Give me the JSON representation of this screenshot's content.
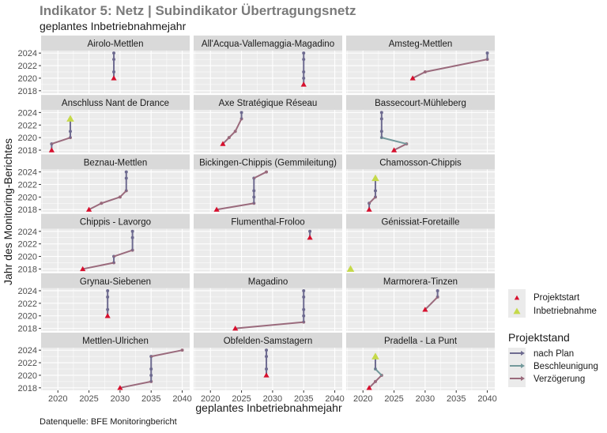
{
  "chart_data": {
    "type": "line",
    "title": "Indikator 5: Netz | Subindikator Übertragungsnetz",
    "subtitle": "geplantes Inbetriebnahmejahr",
    "xlabel": "geplantes Inbetriebnahmejahr",
    "ylabel": "Jahr des Monitoring-Berichtes",
    "caption": "Datenquelle: BFE Monitoringbericht",
    "xlim": [
      2017.3,
      2041.2
    ],
    "ylim": [
      2017.6,
      2024.4
    ],
    "xticks": [
      2020,
      2025,
      2030,
      2035,
      2040
    ],
    "yticks": [
      2018,
      2020,
      2022,
      2024
    ],
    "grid": true,
    "legend_placement": "right",
    "legend": {
      "points": [
        {
          "key": "start",
          "label": "Projektstart",
          "color": "#d7102e"
        },
        {
          "key": "commissioning",
          "label": "Inbetriebnahme",
          "color": "#c5d94a"
        }
      ],
      "status_title": "Projektstand",
      "status": [
        {
          "key": "plan",
          "label": "nach Plan",
          "color": "#6e6b90"
        },
        {
          "key": "beschleunigung",
          "label": "Beschleunigung",
          "color": "#73999b"
        },
        {
          "key": "verzoegerung",
          "label": "Verzögerung",
          "color": "#9a6a7c"
        }
      ]
    },
    "panels": [
      {
        "title": "Airolo-Mettlen",
        "start": [
          2029,
          2020
        ],
        "commissioning": null,
        "path": [
          [
            2029,
            2020,
            null
          ],
          [
            2029,
            2021,
            "plan"
          ],
          [
            2029,
            2023,
            "plan"
          ],
          [
            2029,
            2024,
            "plan"
          ]
        ]
      },
      {
        "title": "All'Acqua-Vallemaggia-Magadino",
        "start": [
          2035,
          2019
        ],
        "commissioning": null,
        "path": [
          [
            2035,
            2019,
            null
          ],
          [
            2035,
            2020,
            "plan"
          ],
          [
            2035,
            2021,
            "plan"
          ],
          [
            2035,
            2023,
            "plan"
          ],
          [
            2035,
            2024,
            "plan"
          ]
        ]
      },
      {
        "title": "Amsteg-Mettlen",
        "start": [
          2028,
          2020
        ],
        "commissioning": null,
        "path": [
          [
            2028,
            2020,
            null
          ],
          [
            2030,
            2021,
            "verzoegerung"
          ],
          [
            2040,
            2023,
            "verzoegerung"
          ],
          [
            2040,
            2024,
            "plan"
          ]
        ]
      },
      {
        "title": "Anschluss Nant de Drance",
        "start": [
          2019,
          2018
        ],
        "commissioning": [
          2022,
          2023
        ],
        "path": [
          [
            2019,
            2018,
            null
          ],
          [
            2019,
            2019,
            "plan"
          ],
          [
            2022,
            2020,
            "verzoegerung"
          ],
          [
            2022,
            2021,
            "plan"
          ],
          [
            2022,
            2023,
            "plan"
          ]
        ]
      },
      {
        "title": "Axe Stratégique Réseau",
        "start": [
          2022,
          2019
        ],
        "commissioning": null,
        "path": [
          [
            2022,
            2019,
            null
          ],
          [
            2023,
            2020,
            "verzoegerung"
          ],
          [
            2024,
            2021,
            "verzoegerung"
          ],
          [
            2025,
            2023,
            "verzoegerung"
          ],
          [
            2025,
            2024,
            "plan"
          ]
        ]
      },
      {
        "title": "Bassecourt-Mühleberg",
        "start": [
          2025,
          2018
        ],
        "commissioning": null,
        "path": [
          [
            2025,
            2018,
            null
          ],
          [
            2027,
            2019,
            "verzoegerung"
          ],
          [
            2023,
            2020,
            "beschleunigung"
          ],
          [
            2023,
            2021,
            "plan"
          ],
          [
            2023,
            2023,
            "plan"
          ],
          [
            2023,
            2024,
            "plan"
          ]
        ]
      },
      {
        "title": "Beznau-Mettlen",
        "start": [
          2025,
          2018
        ],
        "commissioning": null,
        "path": [
          [
            2025,
            2018,
            null
          ],
          [
            2027,
            2019,
            "verzoegerung"
          ],
          [
            2030,
            2020,
            "verzoegerung"
          ],
          [
            2031,
            2021,
            "verzoegerung"
          ],
          [
            2031,
            2023,
            "plan"
          ],
          [
            2031,
            2024,
            "plan"
          ]
        ]
      },
      {
        "title": "Bickingen-Chippis (Gemmileitung)",
        "start": [
          2021,
          2018
        ],
        "commissioning": null,
        "path": [
          [
            2021,
            2018,
            null
          ],
          [
            2027,
            2019,
            "verzoegerung"
          ],
          [
            2027,
            2020,
            "plan"
          ],
          [
            2027,
            2021,
            "plan"
          ],
          [
            2027,
            2023,
            "plan"
          ],
          [
            2029,
            2024,
            "verzoegerung"
          ]
        ]
      },
      {
        "title": "Chamosson-Chippis",
        "start": [
          2021,
          2018
        ],
        "commissioning": [
          2022,
          2023
        ],
        "path": [
          [
            2021,
            2018,
            null
          ],
          [
            2021,
            2019,
            "plan"
          ],
          [
            2022,
            2020,
            "verzoegerung"
          ],
          [
            2022,
            2021,
            "plan"
          ],
          [
            2022,
            2023,
            "plan"
          ]
        ]
      },
      {
        "title": "Chippis - Lavorgo",
        "start": [
          2024,
          2018
        ],
        "commissioning": null,
        "path": [
          [
            2024,
            2018,
            null
          ],
          [
            2029,
            2019,
            "verzoegerung"
          ],
          [
            2029,
            2020,
            "plan"
          ],
          [
            2032,
            2021,
            "verzoegerung"
          ],
          [
            2032,
            2023,
            "plan"
          ],
          [
            2032,
            2024,
            "plan"
          ]
        ]
      },
      {
        "title": "Flumenthal-Froloo",
        "start": [
          2036,
          2023
        ],
        "commissioning": null,
        "path": [
          [
            2036,
            2023,
            null
          ],
          [
            2036,
            2024,
            "plan"
          ]
        ]
      },
      {
        "title": "Génissiat-Foretaille",
        "start": null,
        "commissioning": [
          2018,
          2018
        ],
        "path": []
      },
      {
        "title": "Grynau-Siebenen",
        "start": [
          2028,
          2020
        ],
        "commissioning": null,
        "path": [
          [
            2028,
            2020,
            null
          ],
          [
            2028,
            2021,
            "plan"
          ],
          [
            2028,
            2023,
            "plan"
          ],
          [
            2028,
            2024,
            "plan"
          ]
        ]
      },
      {
        "title": "Magadino",
        "start": [
          2024,
          2018
        ],
        "commissioning": null,
        "path": [
          [
            2024,
            2018,
            null
          ],
          [
            2035,
            2019,
            "verzoegerung"
          ],
          [
            2035,
            2020,
            "plan"
          ],
          [
            2035,
            2021,
            "plan"
          ],
          [
            2035,
            2023,
            "plan"
          ],
          [
            2035,
            2024,
            "plan"
          ]
        ]
      },
      {
        "title": "Marmorera-Tinzen",
        "start": [
          2030,
          2021
        ],
        "commissioning": null,
        "path": [
          [
            2030,
            2021,
            null
          ],
          [
            2032,
            2023,
            "verzoegerung"
          ],
          [
            2032,
            2024,
            "plan"
          ]
        ]
      },
      {
        "title": "Mettlen-Ulrichen",
        "start": [
          2030,
          2018
        ],
        "commissioning": null,
        "path": [
          [
            2030,
            2018,
            null
          ],
          [
            2035,
            2019,
            "verzoegerung"
          ],
          [
            2035,
            2020,
            "plan"
          ],
          [
            2035,
            2021,
            "plan"
          ],
          [
            2035,
            2023,
            "plan"
          ],
          [
            2040,
            2024,
            "verzoegerung"
          ]
        ]
      },
      {
        "title": "Obfelden-Samstagern",
        "start": [
          2029,
          2020
        ],
        "commissioning": null,
        "path": [
          [
            2029,
            2020,
            null
          ],
          [
            2029,
            2021,
            "plan"
          ],
          [
            2029,
            2023,
            "plan"
          ],
          [
            2029,
            2024,
            "plan"
          ]
        ]
      },
      {
        "title": "Pradella - La Punt",
        "start": [
          2021,
          2018
        ],
        "commissioning": [
          2022,
          2023
        ],
        "path": [
          [
            2021,
            2018,
            null
          ],
          [
            2022,
            2019,
            "verzoegerung"
          ],
          [
            2023,
            2020,
            "verzoegerung"
          ],
          [
            2022,
            2021,
            "beschleunigung"
          ],
          [
            2022,
            2023,
            "plan"
          ]
        ]
      }
    ]
  }
}
